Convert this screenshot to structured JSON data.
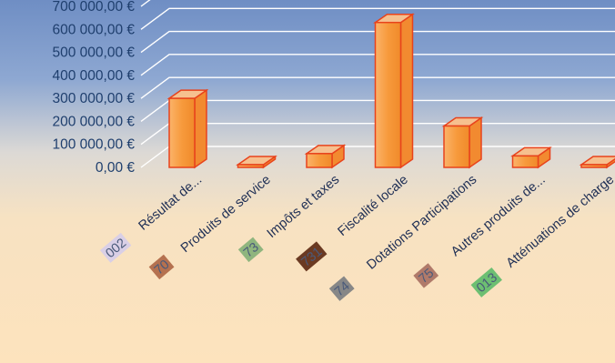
{
  "chart_data": {
    "type": "bar",
    "title": "",
    "xlabel": "",
    "ylabel": "",
    "ylim": [
      0,
      700000
    ],
    "y_ticks": [
      "0,00 €",
      "100 000,00 €",
      "200 000,00 €",
      "300 000,00 €",
      "400 000,00 €",
      "500 000,00 €",
      "600 000,00 €",
      "700 000,00 €"
    ],
    "grid": true,
    "legend": "none",
    "categories": [
      {
        "code": "002",
        "name": "Résultat de...",
        "code_color": "#d9cfe6"
      },
      {
        "code": "70",
        "name": "Produits de service",
        "code_color": "#b5714f"
      },
      {
        "code": "73",
        "name": "Impôts et taxes",
        "code_color": "#8fb57e"
      },
      {
        "code": "731",
        "name": "Fiscalité locale",
        "code_color": "#6b3a22"
      },
      {
        "code": "74",
        "name": "Dotations Participations",
        "code_color": "#878787"
      },
      {
        "code": "75",
        "name": "Autres produits de...",
        "code_color": "#b07a6a"
      },
      {
        "code": "013",
        "name": "Atténuations de charge",
        "code_color": "#6dbf72"
      }
    ],
    "values": [
      300000,
      3000,
      60000,
      630000,
      180000,
      50000,
      3000
    ],
    "colors": {
      "bar_fill": "#f79a3c",
      "bar_edge": "#e8431c",
      "bar_top": "#f6c08f",
      "gridline": "#ffffff",
      "tick_text": "#1f3f6e"
    }
  }
}
